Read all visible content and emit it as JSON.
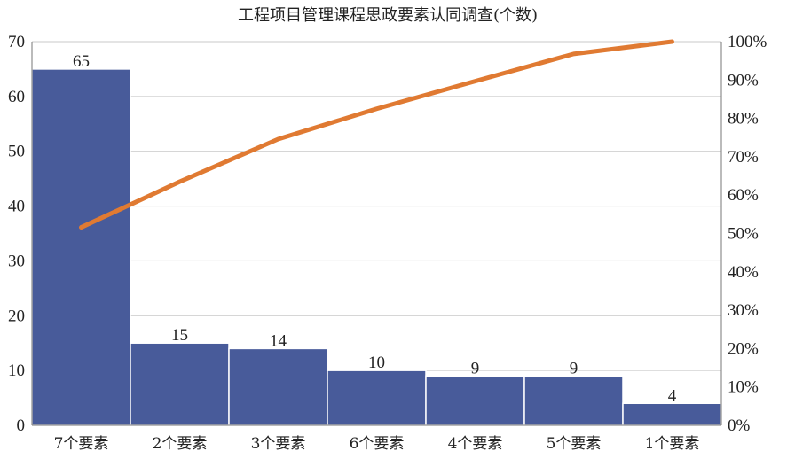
{
  "chart_data": {
    "type": "bar",
    "title": "工程项目管理课程思政要素认同调查(个数)",
    "xlabel": "",
    "ylabel": "",
    "categories": [
      "7个要素",
      "2个要素",
      "3个要素",
      "6个要素",
      "4个要素",
      "5个要素",
      "1个要素"
    ],
    "values": [
      65,
      15,
      14,
      10,
      9,
      9,
      4
    ],
    "ylim": [
      0,
      70
    ],
    "y_ticks": [
      0,
      10,
      20,
      30,
      40,
      50,
      60,
      70
    ],
    "y2_ticks": [
      "0%",
      "10%",
      "20%",
      "30%",
      "40%",
      "50%",
      "60%",
      "70%",
      "80%",
      "90%",
      "100%"
    ],
    "y2lim": [
      0,
      100
    ],
    "cumulative_percent": [
      51.6,
      63.5,
      74.6,
      82.5,
      89.7,
      96.8,
      100
    ],
    "grid": true,
    "legend": "none",
    "colors": {
      "bar": "#485b9a",
      "line": "#e07a32"
    }
  }
}
